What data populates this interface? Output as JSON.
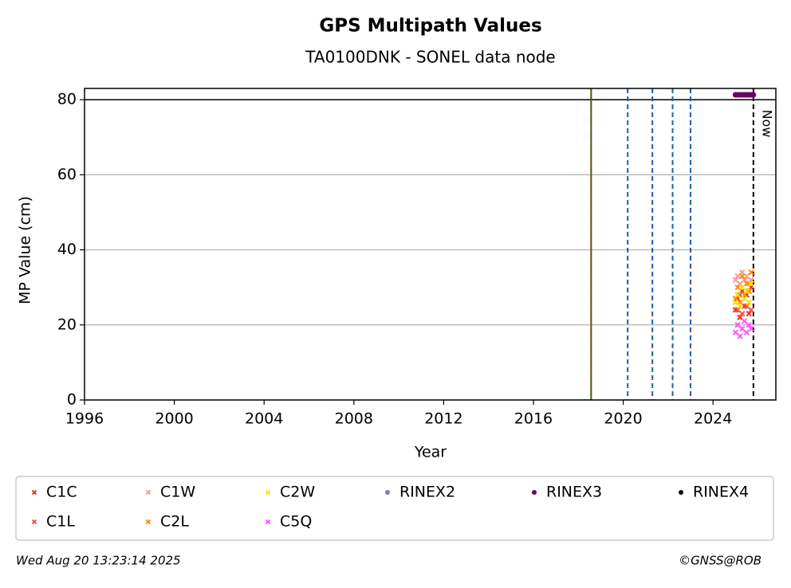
{
  "chart_data": {
    "type": "scatter",
    "title": "GPS Multipath Values",
    "subtitle": "TA0100DNK - SONEL data node",
    "xlabel": "Year",
    "ylabel": "MP Value (cm)",
    "xlim": [
      1996,
      2026.8
    ],
    "ylim": [
      0,
      83
    ],
    "xticks": [
      1996,
      2000,
      2004,
      2008,
      2012,
      2016,
      2020,
      2024
    ],
    "yticks": [
      0,
      20,
      40,
      60,
      80
    ],
    "grid": true,
    "hlines": [
      80
    ],
    "event_lines": [
      {
        "x": 2018.57,
        "color": "#008000",
        "style": "solid"
      },
      {
        "x": 2018.57,
        "color": "#e02020",
        "style": "dotted"
      },
      {
        "x": 2020.2,
        "color": "#1f5fa8",
        "style": "dashed"
      },
      {
        "x": 2021.3,
        "color": "#1f5fa8",
        "style": "dashed"
      },
      {
        "x": 2022.2,
        "color": "#1f5fa8",
        "style": "dashed"
      },
      {
        "x": 2023.0,
        "color": "#1f5fa8",
        "style": "dashed"
      }
    ],
    "now_line": {
      "x": 2025.8,
      "label": "Now"
    },
    "series": [
      {
        "name": "C1C",
        "color": "#e8372b",
        "marker": "x",
        "x": [
          2025.0,
          2025.1,
          2025.2,
          2025.3,
          2025.4,
          2025.5,
          2025.6,
          2025.7
        ],
        "values": [
          24,
          27,
          22,
          29,
          25,
          28,
          23,
          30
        ]
      },
      {
        "name": "C1L",
        "color": "#f0544a",
        "marker": "x",
        "x": [
          2025.0,
          2025.1,
          2025.2,
          2025.3,
          2025.4,
          2025.5,
          2025.6,
          2025.7
        ],
        "values": [
          26,
          24,
          28,
          23,
          27,
          25,
          29,
          24
        ]
      },
      {
        "name": "C1W",
        "color": "#ff9999",
        "marker": "x",
        "x": [
          2025.0,
          2025.1,
          2025.2,
          2025.3,
          2025.4,
          2025.5,
          2025.6,
          2025.7
        ],
        "values": [
          32,
          33,
          31,
          34,
          32,
          33,
          31,
          32
        ]
      },
      {
        "name": "C2L",
        "color": "#ff8c00",
        "marker": "x",
        "x": [
          2025.0,
          2025.1,
          2025.2,
          2025.3,
          2025.4,
          2025.5,
          2025.6,
          2025.7
        ],
        "values": [
          27,
          30,
          26,
          33,
          28,
          31,
          29,
          34
        ]
      },
      {
        "name": "C2W",
        "color": "#ffe000",
        "marker": "x",
        "x": [
          2025.0,
          2025.1,
          2025.2,
          2025.3,
          2025.4,
          2025.5,
          2025.6,
          2025.7
        ],
        "values": [
          26,
          28,
          25,
          30,
          27,
          29,
          26,
          31
        ]
      },
      {
        "name": "C5Q",
        "color": "#ff55ff",
        "marker": "x",
        "x": [
          2025.0,
          2025.1,
          2025.2,
          2025.3,
          2025.4,
          2025.5,
          2025.6,
          2025.7
        ],
        "values": [
          18,
          20,
          17,
          19,
          21,
          18,
          20,
          19
        ]
      },
      {
        "name": "RINEX2",
        "color": "#7b7bbd",
        "marker": "o",
        "x": [],
        "values": []
      },
      {
        "name": "RINEX3",
        "color": "#6b0066",
        "marker": "o",
        "x": [
          2025.0,
          2025.1,
          2025.2,
          2025.3,
          2025.4,
          2025.5,
          2025.6,
          2025.7,
          2025.8
        ],
        "values": [
          81.3,
          81.3,
          81.3,
          81.3,
          81.3,
          81.3,
          81.3,
          81.3,
          81.3
        ]
      },
      {
        "name": "RINEX4",
        "color": "#1a0020",
        "marker": "o",
        "x": [],
        "values": []
      }
    ]
  },
  "footer": {
    "timestamp": "Wed Aug 20 13:23:14 2025",
    "credit": "©GNSS@ROB"
  }
}
